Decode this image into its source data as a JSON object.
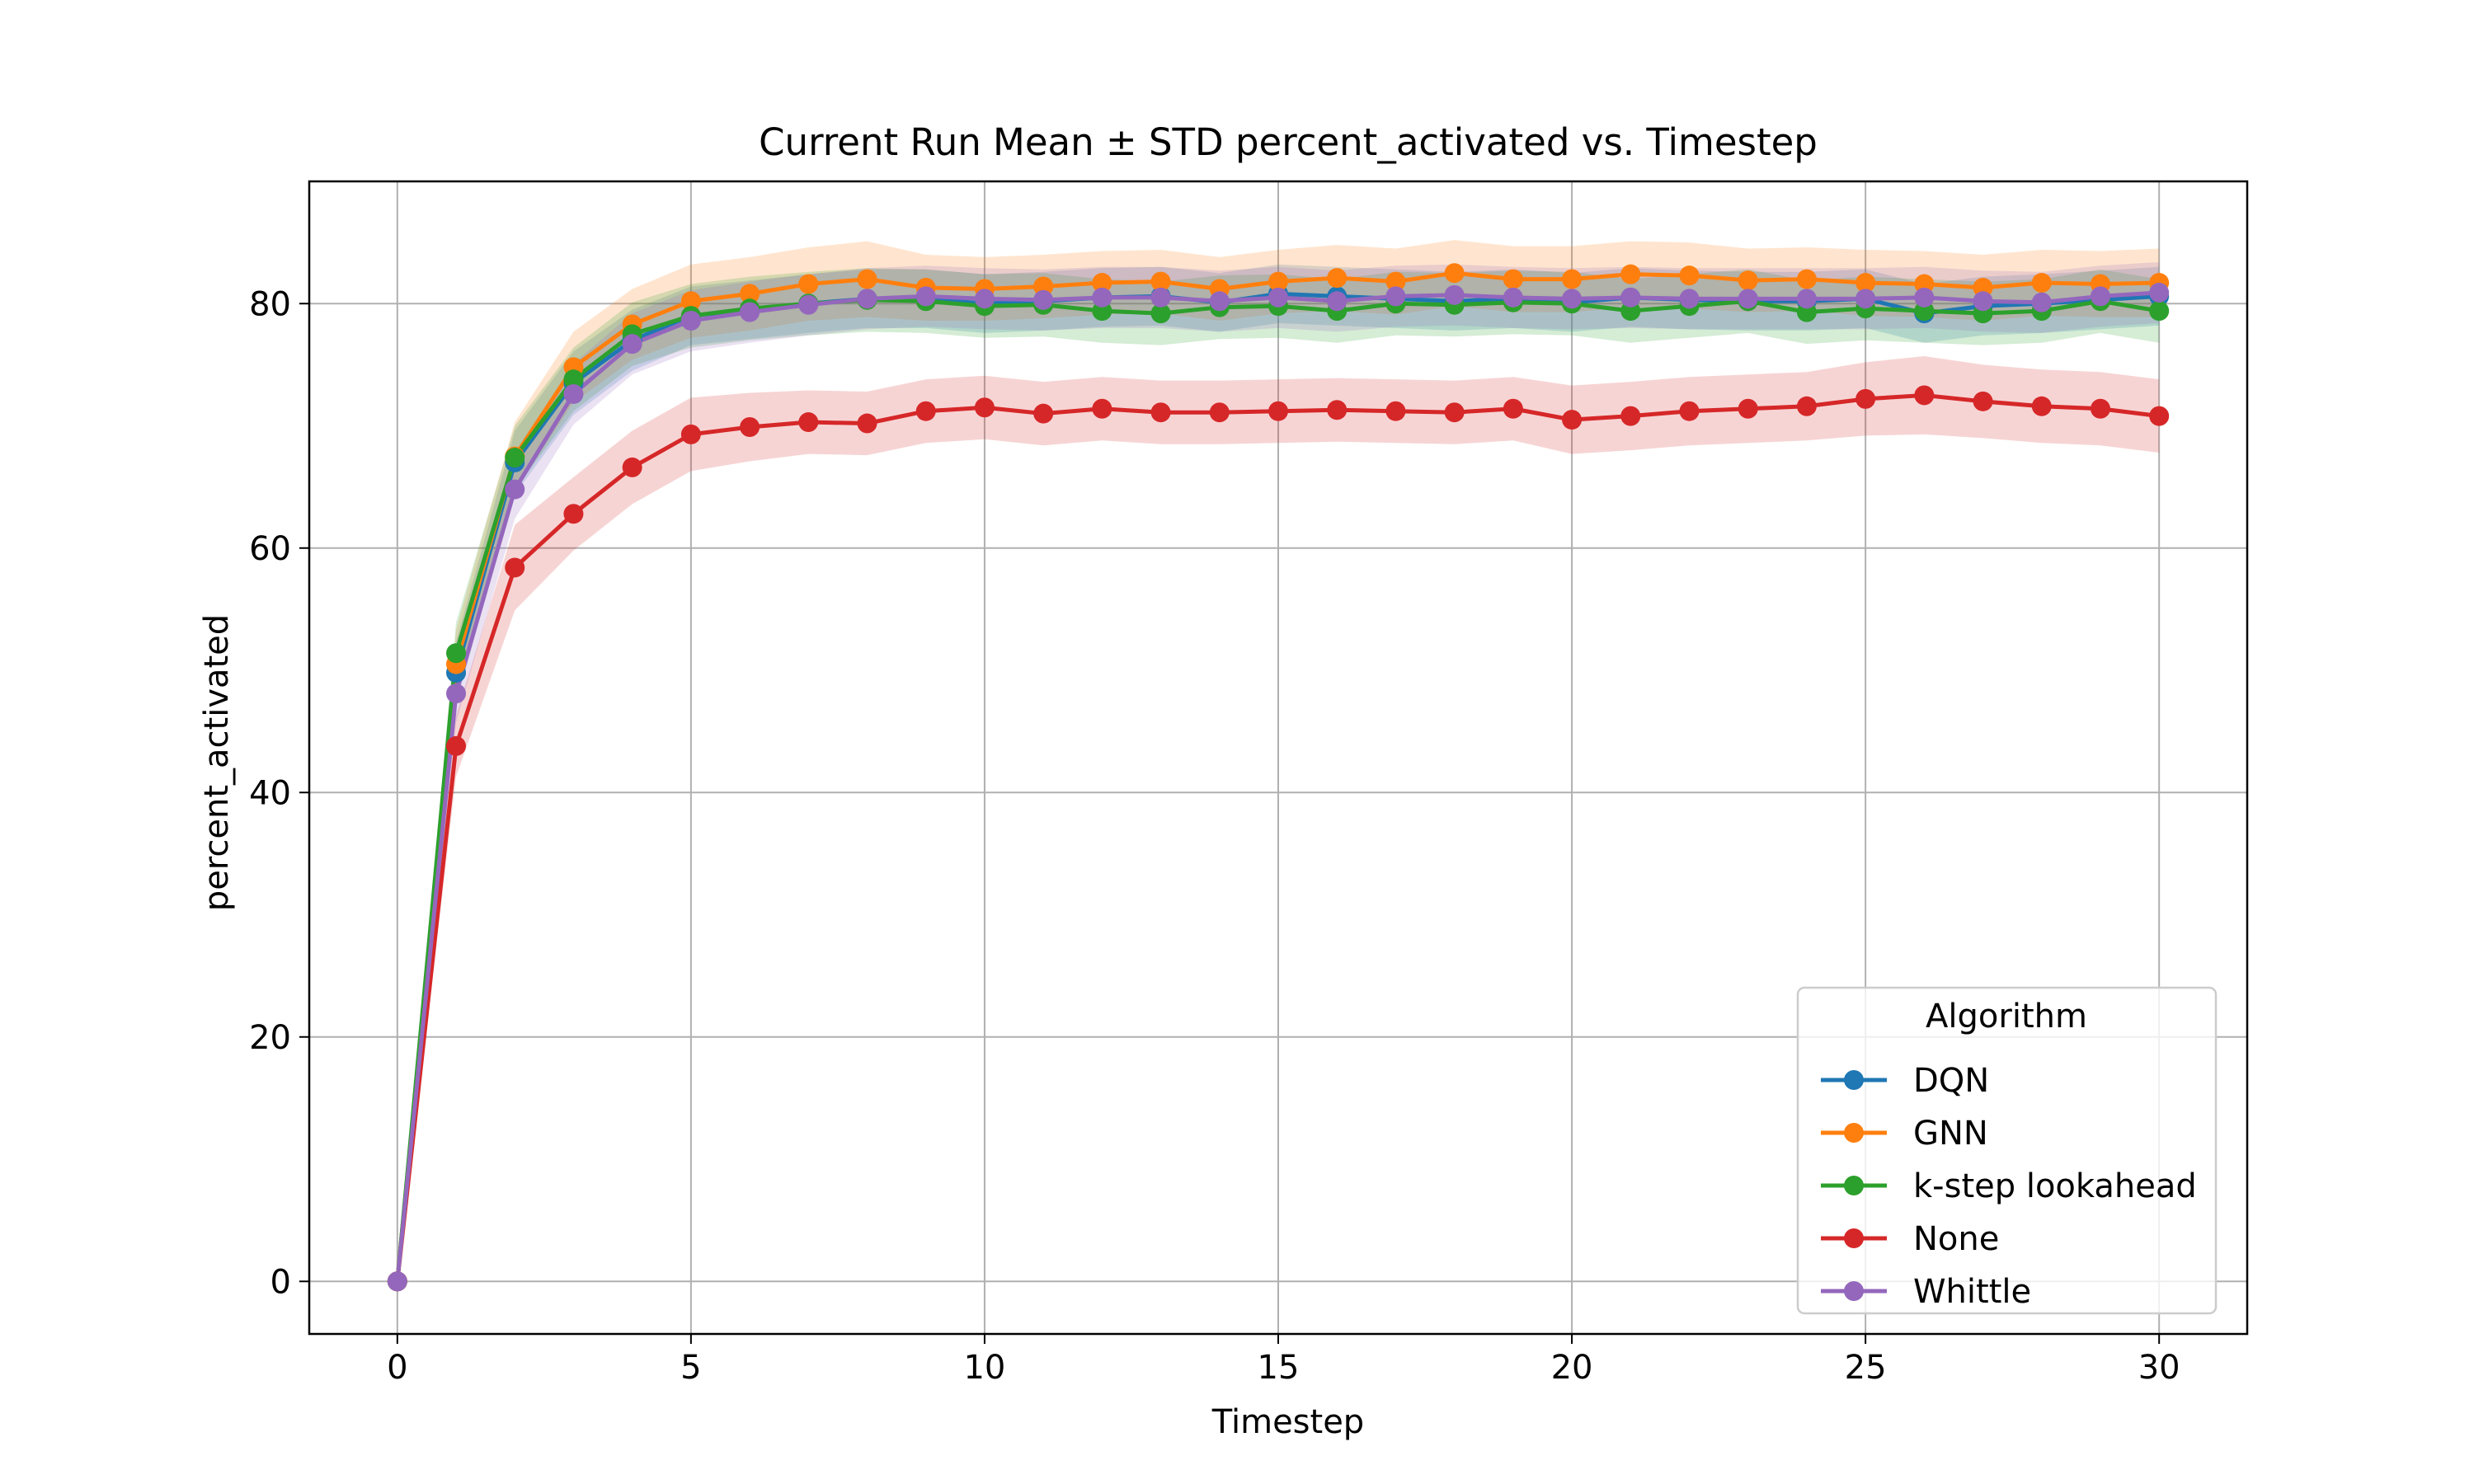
{
  "chart_data": {
    "type": "line",
    "title": "Current Run Mean ± STD percent_activated vs. Timestep",
    "xlabel": "Timestep",
    "ylabel": "percent_activated",
    "xlim": [
      -1.5,
      31.5
    ],
    "ylim": [
      -4.3,
      90.0
    ],
    "x_ticks": [
      0,
      5,
      10,
      15,
      20,
      25,
      30
    ],
    "y_ticks": [
      0,
      20,
      40,
      60,
      80
    ],
    "grid": true,
    "legend": {
      "title": "Algorithm",
      "placement": "lower right"
    },
    "x": [
      0,
      1,
      2,
      3,
      4,
      5,
      6,
      7,
      8,
      9,
      10,
      11,
      12,
      13,
      14,
      15,
      16,
      17,
      18,
      19,
      20,
      21,
      22,
      23,
      24,
      25,
      26,
      27,
      28,
      29,
      30
    ],
    "series": [
      {
        "name": "DQN",
        "color": "#1f77b4",
        "values": [
          0,
          49.8,
          67.0,
          73.5,
          77.0,
          79.0,
          79.5,
          80.0,
          80.4,
          80.4,
          80.0,
          80.2,
          80.5,
          80.6,
          80.1,
          80.8,
          80.6,
          80.4,
          80.2,
          80.4,
          80.1,
          80.5,
          80.3,
          80.2,
          80.2,
          80.4,
          79.2,
          79.8,
          80.0,
          80.3,
          80.6
        ],
        "std": [
          0,
          2.5,
          2.6,
          2.6,
          2.5,
          2.4,
          2.4,
          2.4,
          2.4,
          2.4,
          2.4,
          2.4,
          2.4,
          2.4,
          2.4,
          2.4,
          2.4,
          2.4,
          2.4,
          2.4,
          2.4,
          2.4,
          2.4,
          2.4,
          2.4,
          2.4,
          2.4,
          2.4,
          2.4,
          2.4,
          2.4
        ]
      },
      {
        "name": "GNN",
        "color": "#ff7f0e",
        "values": [
          0,
          50.5,
          67.5,
          74.8,
          78.3,
          80.2,
          80.8,
          81.6,
          82.0,
          81.3,
          81.2,
          81.4,
          81.7,
          81.8,
          81.2,
          81.8,
          82.1,
          81.8,
          82.5,
          82.0,
          82.0,
          82.4,
          82.3,
          81.9,
          82.0,
          81.7,
          81.6,
          81.3,
          81.7,
          81.6,
          81.7
        ],
        "std": [
          0,
          2.8,
          2.8,
          2.9,
          2.9,
          3.0,
          3.0,
          3.0,
          3.1,
          2.7,
          2.6,
          2.6,
          2.6,
          2.6,
          2.6,
          2.6,
          2.7,
          2.7,
          2.7,
          2.7,
          2.7,
          2.7,
          2.7,
          2.6,
          2.6,
          2.7,
          2.7,
          2.7,
          2.7,
          2.7,
          2.8
        ]
      },
      {
        "name": "k-step lookahead",
        "color": "#2ca02c",
        "values": [
          0,
          51.4,
          67.4,
          73.8,
          77.5,
          79.0,
          79.6,
          80.0,
          80.3,
          80.2,
          79.8,
          79.9,
          79.4,
          79.2,
          79.7,
          79.8,
          79.4,
          80.0,
          79.9,
          80.1,
          80.0,
          79.4,
          79.8,
          80.2,
          79.3,
          79.6,
          79.4,
          79.2,
          79.4,
          80.2,
          79.4
        ],
        "std": [
          0,
          2.5,
          2.6,
          2.6,
          2.6,
          2.6,
          2.6,
          2.6,
          2.6,
          2.6,
          2.6,
          2.6,
          2.6,
          2.6,
          2.6,
          2.6,
          2.6,
          2.6,
          2.6,
          2.6,
          2.6,
          2.6,
          2.6,
          2.6,
          2.6,
          2.6,
          2.6,
          2.6,
          2.6,
          2.6,
          2.6
        ]
      },
      {
        "name": "None",
        "color": "#d62728",
        "values": [
          0,
          43.8,
          58.4,
          62.8,
          66.6,
          69.3,
          69.9,
          70.3,
          70.2,
          71.2,
          71.5,
          71.0,
          71.4,
          71.1,
          71.1,
          71.2,
          71.3,
          71.2,
          71.1,
          71.4,
          70.5,
          70.8,
          71.2,
          71.4,
          71.6,
          72.2,
          72.5,
          72.0,
          71.6,
          71.4,
          70.8
        ],
        "std": [
          0,
          2.5,
          3.5,
          3.0,
          3.0,
          3.0,
          2.8,
          2.6,
          2.6,
          2.6,
          2.6,
          2.6,
          2.6,
          2.6,
          2.6,
          2.6,
          2.6,
          2.6,
          2.6,
          2.6,
          2.8,
          2.8,
          2.8,
          2.8,
          2.8,
          3.0,
          3.2,
          3.0,
          3.0,
          3.0,
          3.0
        ]
      },
      {
        "name": "Whittle",
        "color": "#9467bd",
        "values": [
          0,
          48.1,
          64.8,
          72.6,
          76.7,
          78.6,
          79.3,
          79.9,
          80.4,
          80.6,
          80.4,
          80.3,
          80.5,
          80.5,
          80.2,
          80.5,
          80.2,
          80.6,
          80.7,
          80.5,
          80.4,
          80.5,
          80.4,
          80.4,
          80.4,
          80.4,
          80.5,
          80.2,
          80.1,
          80.6,
          80.9
        ],
        "std": [
          0,
          2.4,
          2.4,
          2.5,
          2.5,
          2.5,
          2.5,
          2.5,
          2.5,
          2.5,
          2.5,
          2.5,
          2.5,
          2.5,
          2.5,
          2.5,
          2.5,
          2.5,
          2.5,
          2.5,
          2.5,
          2.5,
          2.5,
          2.5,
          2.5,
          2.5,
          2.5,
          2.5,
          2.5,
          2.5,
          2.5
        ]
      }
    ]
  }
}
